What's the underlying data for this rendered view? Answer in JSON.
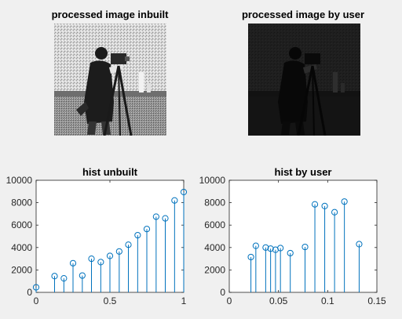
{
  "figure": {
    "titles": {
      "img1": "processed image inbuilt",
      "img2": "processed image by user"
    }
  },
  "chart_data": [
    {
      "type": "stem",
      "title": "hist unbuilt",
      "xlabel": "",
      "ylabel": "",
      "xlim": [
        0,
        1
      ],
      "ylim": [
        0,
        10000
      ],
      "xticks": [
        0,
        0.5,
        1
      ],
      "yticks": [
        0,
        2000,
        4000,
        6000,
        8000,
        10000
      ],
      "x": [
        0,
        0.125,
        0.188,
        0.25,
        0.313,
        0.375,
        0.438,
        0.5,
        0.563,
        0.625,
        0.688,
        0.75,
        0.813,
        0.875,
        0.938,
        1.0
      ],
      "y": [
        450,
        1450,
        1250,
        2600,
        1500,
        3000,
        2700,
        3250,
        3650,
        4250,
        5100,
        5650,
        6750,
        6600,
        8200,
        8950
      ],
      "color": "#0072bd"
    },
    {
      "type": "stem",
      "title": "hist by user",
      "xlabel": "",
      "ylabel": "",
      "xlim": [
        0,
        0.15
      ],
      "ylim": [
        0,
        10000
      ],
      "xticks": [
        0,
        0.05,
        0.1,
        0.15
      ],
      "yticks": [
        0,
        2000,
        4000,
        6000,
        8000,
        10000
      ],
      "x": [
        0.022,
        0.027,
        0.037,
        0.042,
        0.047,
        0.052,
        0.062,
        0.077,
        0.087,
        0.097,
        0.107,
        0.117,
        0.132
      ],
      "y": [
        3150,
        4150,
        4000,
        3900,
        3800,
        3950,
        3500,
        4050,
        7850,
        7700,
        7150,
        8100,
        4300
      ],
      "color": "#0072bd"
    }
  ]
}
